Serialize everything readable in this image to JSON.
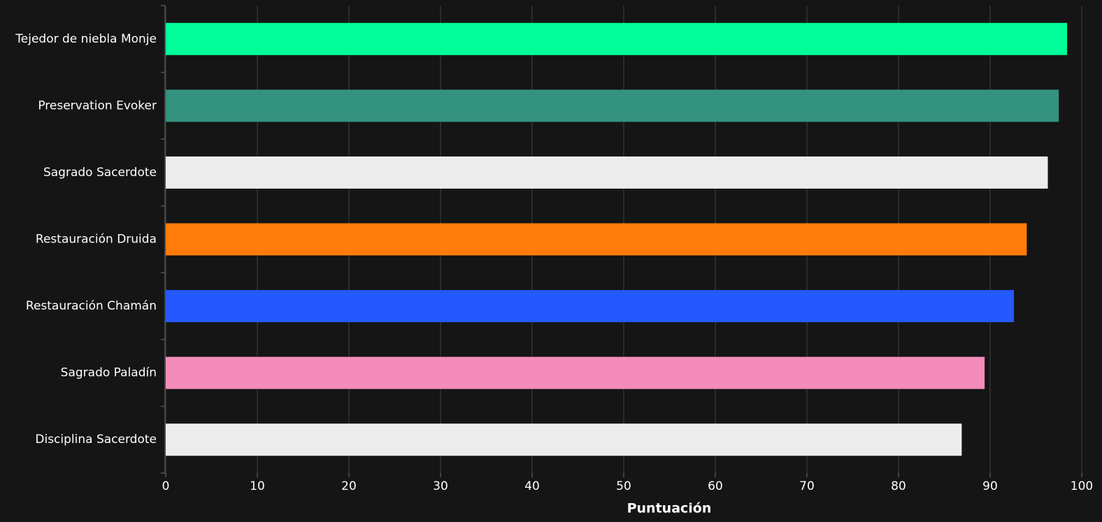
{
  "chart_data": {
    "type": "bar",
    "orientation": "horizontal",
    "categories": [
      "Tejedor de niebla Monje",
      "Preservation Evoker",
      "Sagrado Sacerdote",
      "Restauración Druida",
      "Restauración Chamán",
      "Sagrado Paladín",
      "Disciplina Sacerdote"
    ],
    "values": [
      98.4,
      97.5,
      96.3,
      94.0,
      92.6,
      89.4,
      86.9
    ],
    "colors": [
      "#00ff98",
      "#33937f",
      "#ececec",
      "#ff7c0a",
      "#2459ff",
      "#f48cba",
      "#ececec"
    ],
    "x_label": "Puntuación",
    "xlim": [
      0,
      100
    ],
    "xticks": [
      0,
      10,
      20,
      30,
      40,
      50,
      60,
      70,
      80,
      90,
      100
    ],
    "grid": true
  }
}
